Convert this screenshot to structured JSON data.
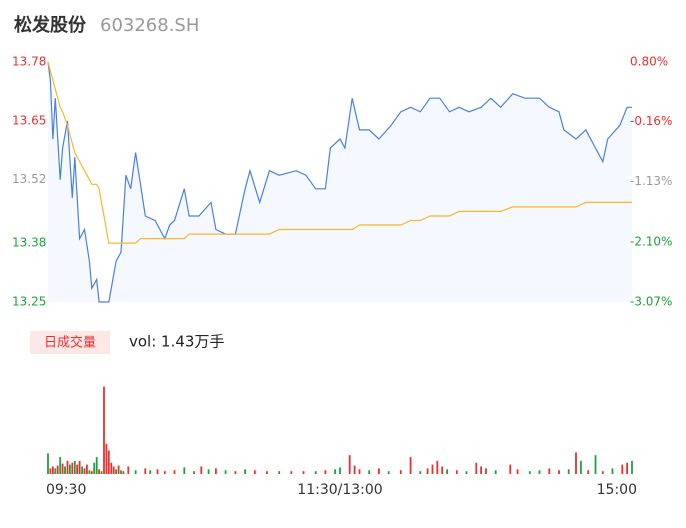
{
  "chart_data": {
    "type": "intraday",
    "title": "松发股份",
    "subtitle": "603268.SH",
    "x": [
      0,
      1,
      2,
      3,
      5,
      6,
      8,
      10,
      11,
      13,
      15,
      17,
      18,
      20,
      21,
      25,
      28,
      30,
      32,
      34,
      36,
      38,
      40,
      44,
      48,
      50,
      52,
      56,
      58,
      62,
      67,
      69,
      73,
      77,
      81,
      83,
      87,
      91,
      95,
      102,
      106,
      110,
      114,
      116,
      120,
      122,
      125,
      128,
      132,
      136,
      141,
      145,
      149,
      153,
      157,
      161,
      165,
      169,
      173,
      178,
      182,
      186,
      191,
      196,
      202,
      206,
      210,
      212,
      217,
      221,
      225,
      228,
      230,
      235,
      238,
      240
    ],
    "series": [
      {
        "color": "#4a7fe0",
        "fill": "#f5f8fe",
        "values": [
          13.78,
          13.74,
          13.61,
          13.7,
          13.52,
          13.59,
          13.65,
          13.48,
          13.57,
          13.39,
          13.41,
          13.34,
          13.28,
          13.3,
          13.25,
          13.25,
          13.34,
          13.36,
          13.53,
          13.5,
          13.58,
          13.51,
          13.44,
          13.43,
          13.39,
          13.42,
          13.43,
          13.5,
          13.44,
          13.44,
          13.47,
          13.41,
          13.4,
          13.4,
          13.5,
          13.54,
          13.47,
          13.54,
          13.53,
          13.54,
          13.53,
          13.5,
          13.5,
          13.59,
          13.61,
          13.59,
          13.7,
          13.63,
          13.63,
          13.61,
          13.64,
          13.67,
          13.68,
          13.67,
          13.7,
          13.7,
          13.67,
          13.68,
          13.67,
          13.68,
          13.7,
          13.68,
          13.71,
          13.7,
          13.7,
          13.68,
          13.67,
          13.63,
          13.61,
          13.63,
          13.59,
          13.56,
          13.61,
          13.64,
          13.68,
          13.68
        ]
      },
      {
        "color": "#f5b82e",
        "values": [
          13.78,
          13.76,
          13.74,
          13.72,
          13.68,
          13.67,
          13.64,
          13.6,
          13.58,
          13.56,
          13.54,
          13.52,
          13.51,
          13.51,
          13.5,
          13.38,
          13.38,
          13.38,
          13.38,
          13.38,
          13.38,
          13.39,
          13.39,
          13.39,
          13.39,
          13.39,
          13.39,
          13.39,
          13.4,
          13.4,
          13.4,
          13.4,
          13.4,
          13.4,
          13.4,
          13.4,
          13.4,
          13.4,
          13.41,
          13.41,
          13.41,
          13.41,
          13.41,
          13.41,
          13.41,
          13.41,
          13.41,
          13.42,
          13.42,
          13.42,
          13.42,
          13.42,
          13.43,
          13.43,
          13.44,
          13.44,
          13.44,
          13.45,
          13.45,
          13.45,
          13.45,
          13.45,
          13.46,
          13.46,
          13.46,
          13.46,
          13.46,
          13.46,
          13.46,
          13.47,
          13.47,
          13.47,
          13.47,
          13.47,
          13.47,
          13.47
        ]
      }
    ],
    "xlim": [
      0,
      240
    ],
    "xticks": [
      {
        "value": 0,
        "label": "09:30"
      },
      {
        "value": 120,
        "label": "11:30/13:00"
      },
      {
        "value": 240,
        "label": "15:00"
      }
    ],
    "ylim": [
      13.25,
      13.78
    ],
    "yticks": [
      13.25,
      13.38,
      13.52,
      13.65,
      13.78
    ],
    "ytick_colors": [
      "#1ea13a",
      "#1ea13a",
      "#999999",
      "#e8312f",
      "#e8312f"
    ],
    "y2lim": [
      -3.07,
      0.8
    ],
    "y2ticks": [
      {
        "value": -3.07,
        "label": "-3.07%"
      },
      {
        "value": -2.1,
        "label": "-2.10%"
      },
      {
        "value": -1.13,
        "label": "-1.13%"
      },
      {
        "value": -0.16,
        "label": "-0.16%"
      },
      {
        "value": 0.8,
        "label": "0.80%"
      }
    ],
    "volume": {
      "title": "日成交量",
      "label": "vol: 1.43万手",
      "up_color": "#e8312f",
      "down_color": "#1ea13a",
      "vlim": [
        0,
        100
      ],
      "x": [
        0,
        1,
        2,
        3,
        4,
        5,
        6,
        7,
        8,
        9,
        10,
        11,
        12,
        13,
        14,
        15,
        16,
        17,
        18,
        19,
        20,
        21,
        22,
        23,
        24,
        25,
        26,
        27,
        28,
        29,
        30,
        31,
        33,
        36,
        40,
        42,
        45,
        48,
        52,
        56,
        60,
        63,
        66,
        69,
        73,
        77,
        81,
        85,
        90,
        95,
        100,
        105,
        110,
        114,
        118,
        120,
        124,
        126,
        128,
        132,
        136,
        140,
        145,
        149,
        153,
        156,
        158,
        160,
        162,
        164,
        168,
        172,
        176,
        178,
        180,
        184,
        190,
        193,
        198,
        202,
        206,
        210,
        214,
        217,
        219,
        222,
        225,
        228,
        232,
        236,
        238,
        240
      ],
      "values": [
        22,
        6,
        8,
        6,
        9,
        18,
        11,
        8,
        14,
        10,
        12,
        14,
        10,
        14,
        8,
        6,
        10,
        4,
        3,
        12,
        18,
        5,
        3,
        93,
        32,
        25,
        12,
        8,
        5,
        9,
        4,
        3,
        8,
        4,
        6,
        4,
        5,
        3,
        4,
        7,
        3,
        8,
        5,
        6,
        4,
        3,
        5,
        4,
        3,
        3,
        3,
        3,
        3,
        4,
        5,
        7,
        20,
        9,
        5,
        4,
        6,
        3,
        4,
        18,
        3,
        6,
        10,
        14,
        8,
        5,
        4,
        3,
        12,
        8,
        6,
        4,
        10,
        5,
        3,
        4,
        6,
        4,
        5,
        23,
        14,
        4,
        20,
        3,
        6,
        10,
        12,
        14
      ],
      "up": [
        false,
        true,
        true,
        false,
        true,
        false,
        true,
        false,
        true,
        false,
        true,
        false,
        true,
        true,
        false,
        true,
        true,
        false,
        true,
        false,
        false,
        true,
        false,
        true,
        true,
        true,
        true,
        true,
        false,
        true,
        false,
        true,
        true,
        false,
        true,
        false,
        true,
        true,
        true,
        false,
        true,
        true,
        false,
        true,
        false,
        true,
        false,
        true,
        true,
        false,
        true,
        true,
        false,
        true,
        false,
        false,
        true,
        true,
        true,
        false,
        true,
        false,
        true,
        true,
        false,
        true,
        true,
        true,
        true,
        false,
        true,
        false,
        true,
        true,
        true,
        false,
        true,
        true,
        false,
        false,
        true,
        true,
        false,
        true,
        false,
        true,
        false,
        true,
        false,
        true,
        true,
        false
      ]
    }
  }
}
